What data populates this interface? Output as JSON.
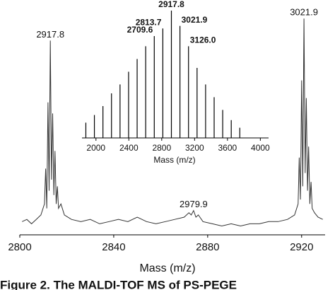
{
  "chart_data": [
    {
      "type": "line",
      "x_label": "Mass (m/z)",
      "color": "#333333",
      "x": [
        2801,
        2803,
        2805,
        2807,
        2809,
        2810.5,
        2811,
        2811.5,
        2812,
        2812.5,
        2813,
        2813.5,
        2814,
        2814.5,
        2815,
        2815.5,
        2816,
        2816.5,
        2817.5,
        2819,
        2822,
        2826,
        2830,
        2834,
        2838,
        2842,
        2846,
        2850,
        2854,
        2858,
        2862,
        2866,
        2870,
        2872,
        2873,
        2874,
        2875,
        2876,
        2878,
        2882,
        2886,
        2890,
        2894,
        2898,
        2902,
        2906,
        2910,
        2914,
        2917,
        2918.5,
        2919,
        2919.5,
        2920,
        2920.5,
        2921,
        2921.5,
        2922,
        2922.5,
        2923,
        2923.5,
        2924,
        2924.5,
        2925.5,
        2927,
        2929
      ],
      "values": [
        6,
        7,
        5,
        7,
        9,
        14,
        30,
        12,
        60,
        20,
        88,
        25,
        55,
        18,
        38,
        14,
        22,
        12,
        14,
        9,
        7,
        6,
        7,
        5,
        6,
        7,
        6,
        8,
        6,
        5,
        6,
        7,
        8,
        10,
        9,
        11,
        8,
        9,
        6,
        5,
        4,
        5,
        4,
        5,
        5,
        6,
        6,
        7,
        9,
        14,
        35,
        16,
        70,
        22,
        98,
        28,
        62,
        20,
        40,
        14,
        24,
        12,
        10,
        8,
        7
      ],
      "xlim": [
        2800,
        2930
      ],
      "ylim": [
        0,
        100
      ],
      "xticks": [
        2800,
        2840,
        2880,
        2920
      ],
      "annotations": [
        {
          "text": "2917.8",
          "x": 2813,
          "y": 88
        },
        {
          "text": "2979.9",
          "x": 2874,
          "y": 11
        },
        {
          "text": "3021.9",
          "x": 2921,
          "y": 98
        }
      ]
    },
    {
      "type": "stick",
      "x_label": "Mass (m/z)",
      "color": "#000000",
      "x": [
        1877,
        1981,
        2085,
        2189,
        2293,
        2397,
        2501,
        2605,
        2709.6,
        2813.7,
        2917.8,
        3021.9,
        3126.0,
        3230,
        3334,
        3438,
        3542,
        3646,
        3750
      ],
      "values": [
        12,
        18,
        25,
        35,
        42,
        52,
        62,
        72,
        80,
        86,
        100,
        88,
        72,
        55,
        42,
        32,
        22,
        14,
        8
      ],
      "xlim": [
        1830,
        4100
      ],
      "ylim": [
        0,
        100
      ],
      "xticks": [
        2000,
        2400,
        2800,
        3200,
        3600,
        4000
      ],
      "annotations": [
        {
          "text": "2709.6",
          "x": 2709.6,
          "y": 80
        },
        {
          "text": "2813.7",
          "x": 2813.7,
          "y": 86
        },
        {
          "text": "2917.8",
          "x": 2917.8,
          "y": 100
        },
        {
          "text": "3021.9",
          "x": 3021.9,
          "y": 88
        },
        {
          "text": "3126.0",
          "x": 3126.0,
          "y": 72
        }
      ]
    }
  ],
  "caption": "Figure 2.  The MALDI-TOF MS of PS-PEGE"
}
